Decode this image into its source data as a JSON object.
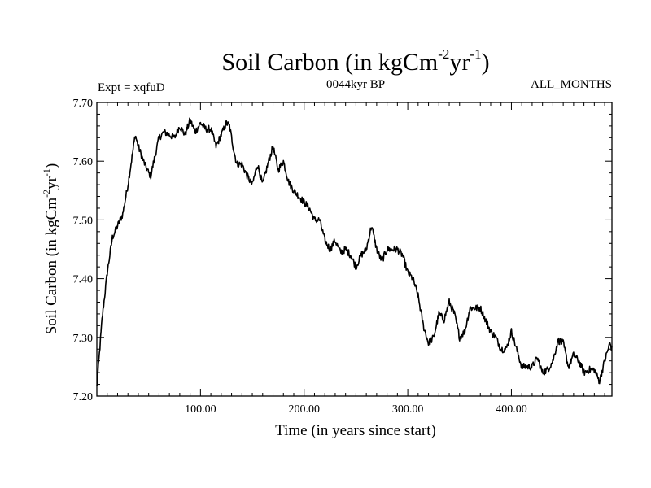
{
  "chart_data": {
    "type": "line",
    "title": "Soil Carbon (in kgCm",
    "title_sup1": "-2",
    "title_mid": "yr",
    "title_sup2": "-1",
    "title_end": ")",
    "left_label": "Expt = xqfuD",
    "center_label": "0044kyr BP",
    "right_label": "ALL_MONTHS",
    "xlabel": "Time (in years since start)",
    "ylabel_main": "Soil Carbon (in kgCm",
    "ylabel_sup1": "-2",
    "ylabel_mid": "yr",
    "ylabel_sup2": "-1",
    "ylabel_end": ")",
    "xlim": [
      0,
      497
    ],
    "ylim": [
      7.2,
      7.7
    ],
    "xticks": [
      100,
      200,
      300,
      400
    ],
    "xtick_labels": [
      "100.00",
      "200.00",
      "300.00",
      "400.00"
    ],
    "yticks": [
      7.2,
      7.3,
      7.4,
      7.5,
      7.6,
      7.7
    ],
    "ytick_labels": [
      "7.20",
      "7.30",
      "7.40",
      "7.50",
      "7.60",
      "7.70"
    ],
    "grid": false,
    "line_color": "#000000",
    "series": [
      {
        "name": "Soil Carbon",
        "x": [
          0,
          5,
          10,
          15,
          20,
          25,
          30,
          35,
          37,
          40,
          45,
          50,
          52,
          55,
          60,
          65,
          70,
          75,
          80,
          85,
          90,
          95,
          100,
          105,
          110,
          115,
          120,
          125,
          128,
          132,
          135,
          140,
          145,
          150,
          155,
          160,
          165,
          170,
          175,
          180,
          185,
          190,
          195,
          200,
          205,
          210,
          215,
          220,
          225,
          230,
          235,
          240,
          245,
          250,
          255,
          260,
          265,
          270,
          275,
          280,
          285,
          290,
          295,
          300,
          305,
          310,
          315,
          320,
          325,
          330,
          335,
          340,
          345,
          350,
          355,
          360,
          365,
          370,
          375,
          380,
          385,
          390,
          395,
          400,
          405,
          410,
          415,
          420,
          425,
          430,
          435,
          440,
          445,
          450,
          455,
          460,
          465,
          470,
          475,
          480,
          485,
          490,
          495,
          497
        ],
        "values": [
          7.215,
          7.33,
          7.41,
          7.47,
          7.49,
          7.51,
          7.56,
          7.62,
          7.645,
          7.625,
          7.6,
          7.58,
          7.575,
          7.6,
          7.64,
          7.65,
          7.645,
          7.64,
          7.66,
          7.645,
          7.67,
          7.65,
          7.665,
          7.655,
          7.655,
          7.625,
          7.645,
          7.665,
          7.66,
          7.62,
          7.595,
          7.595,
          7.575,
          7.56,
          7.595,
          7.56,
          7.595,
          7.625,
          7.585,
          7.6,
          7.565,
          7.55,
          7.54,
          7.53,
          7.52,
          7.5,
          7.5,
          7.465,
          7.45,
          7.465,
          7.445,
          7.45,
          7.44,
          7.42,
          7.44,
          7.45,
          7.49,
          7.45,
          7.43,
          7.45,
          7.45,
          7.45,
          7.44,
          7.41,
          7.4,
          7.37,
          7.32,
          7.29,
          7.3,
          7.34,
          7.33,
          7.36,
          7.34,
          7.3,
          7.31,
          7.35,
          7.35,
          7.35,
          7.33,
          7.31,
          7.3,
          7.28,
          7.28,
          7.31,
          7.28,
          7.25,
          7.25,
          7.25,
          7.265,
          7.24,
          7.245,
          7.26,
          7.295,
          7.29,
          7.25,
          7.27,
          7.26,
          7.24,
          7.245,
          7.245,
          7.225,
          7.26,
          7.29,
          7.28
        ]
      }
    ]
  }
}
